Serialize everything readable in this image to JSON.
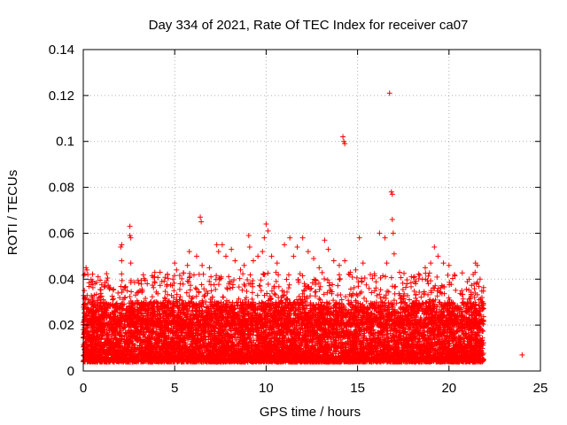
{
  "chart_data": {
    "type": "scatter",
    "title": "Day 334 of 2021, Rate Of TEC Index for receiver ca07",
    "xlabel": "GPS time / hours",
    "ylabel": "ROTI / TECUs",
    "xlim": [
      0,
      25
    ],
    "ylim": [
      0,
      0.14
    ],
    "xticks": [
      0,
      5,
      10,
      15,
      20,
      25
    ],
    "yticks": [
      0,
      0.02,
      0.04,
      0.06,
      0.08,
      0.1,
      0.12,
      0.14
    ],
    "xtick_labels": [
      "0",
      "5",
      "10",
      "15",
      "20",
      "25"
    ],
    "ytick_labels": [
      "0",
      "0.02",
      "0.04",
      "0.06",
      "0.08",
      "0.1",
      "0.12",
      "0.14"
    ],
    "grid": true,
    "marker": "+",
    "color": "#ff0000",
    "series": [
      {
        "name": "ROTI",
        "points": [
          [
            0.05,
            0.027
          ],
          [
            0.1,
            0.032
          ],
          [
            0.15,
            0.045
          ],
          [
            0.2,
            0.044
          ],
          [
            0.25,
            0.042
          ],
          [
            0.3,
            0.031
          ],
          [
            0.6,
            0.033
          ],
          [
            0.9,
            0.028
          ],
          [
            1.1,
            0.031
          ],
          [
            1.5,
            0.029
          ],
          [
            1.9,
            0.034
          ],
          [
            2.05,
            0.054
          ],
          [
            2.1,
            0.055
          ],
          [
            2.1,
            0.048
          ],
          [
            2.55,
            0.063
          ],
          [
            2.55,
            0.059
          ],
          [
            2.6,
            0.058
          ],
          [
            2.6,
            0.047
          ],
          [
            3.1,
            0.035
          ],
          [
            3.5,
            0.038
          ],
          [
            3.9,
            0.041
          ],
          [
            4.2,
            0.043
          ],
          [
            4.3,
            0.039
          ],
          [
            4.6,
            0.042
          ],
          [
            4.9,
            0.04
          ],
          [
            5.0,
            0.047
          ],
          [
            5.1,
            0.044
          ],
          [
            5.3,
            0.038
          ],
          [
            5.7,
            0.046
          ],
          [
            5.8,
            0.052
          ],
          [
            6.2,
            0.05
          ],
          [
            6.4,
            0.067
          ],
          [
            6.45,
            0.065
          ],
          [
            6.5,
            0.046
          ],
          [
            6.9,
            0.045
          ],
          [
            7.3,
            0.055
          ],
          [
            7.4,
            0.052
          ],
          [
            7.6,
            0.055
          ],
          [
            7.8,
            0.05
          ],
          [
            8.1,
            0.053
          ],
          [
            8.3,
            0.048
          ],
          [
            8.6,
            0.044
          ],
          [
            8.8,
            0.046
          ],
          [
            9.05,
            0.059
          ],
          [
            9.1,
            0.054
          ],
          [
            9.3,
            0.048
          ],
          [
            9.55,
            0.05
          ],
          [
            9.8,
            0.052
          ],
          [
            9.9,
            0.058
          ],
          [
            10.0,
            0.064
          ],
          [
            10.1,
            0.061
          ],
          [
            10.3,
            0.05
          ],
          [
            10.6,
            0.047
          ],
          [
            11.0,
            0.055
          ],
          [
            11.3,
            0.058
          ],
          [
            11.5,
            0.05
          ],
          [
            11.7,
            0.054
          ],
          [
            12.0,
            0.058
          ],
          [
            12.3,
            0.052
          ],
          [
            12.6,
            0.049
          ],
          [
            12.9,
            0.045
          ],
          [
            13.2,
            0.057
          ],
          [
            13.4,
            0.053
          ],
          [
            13.7,
            0.048
          ],
          [
            14.0,
            0.046
          ],
          [
            14.2,
            0.102
          ],
          [
            14.25,
            0.1
          ],
          [
            14.3,
            0.099
          ],
          [
            14.3,
            0.048
          ],
          [
            14.6,
            0.043
          ],
          [
            14.9,
            0.044
          ],
          [
            15.1,
            0.058
          ],
          [
            15.3,
            0.047
          ],
          [
            15.7,
            0.042
          ],
          [
            16.2,
            0.06
          ],
          [
            16.5,
            0.058
          ],
          [
            16.6,
            0.047
          ],
          [
            16.75,
            0.121
          ],
          [
            16.85,
            0.078
          ],
          [
            16.9,
            0.077
          ],
          [
            16.9,
            0.066
          ],
          [
            16.95,
            0.06
          ],
          [
            17.0,
            0.051
          ],
          [
            17.3,
            0.043
          ],
          [
            17.7,
            0.038
          ],
          [
            18.2,
            0.039
          ],
          [
            18.7,
            0.045
          ],
          [
            19.0,
            0.047
          ],
          [
            19.2,
            0.054
          ],
          [
            19.4,
            0.05
          ],
          [
            19.7,
            0.047
          ],
          [
            20.0,
            0.046
          ],
          [
            20.3,
            0.042
          ],
          [
            20.7,
            0.035
          ],
          [
            21.0,
            0.03
          ],
          [
            21.4,
            0.032
          ],
          [
            21.45,
            0.047
          ],
          [
            21.55,
            0.046
          ],
          [
            21.7,
            0.04
          ],
          [
            21.8,
            0.032
          ],
          [
            24.0,
            0.007
          ]
        ],
        "dense_band": {
          "x_range": [
            0,
            21.9
          ],
          "y_range": [
            0.004,
            0.03
          ],
          "description": "dense cloud of ROTI samples"
        }
      }
    ]
  }
}
